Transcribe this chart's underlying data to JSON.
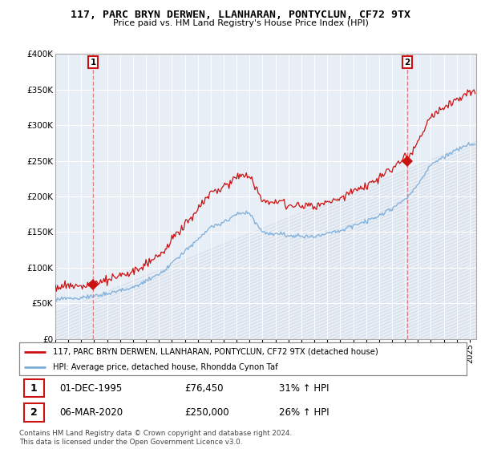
{
  "title": "117, PARC BRYN DERWEN, LLANHARAN, PONTYCLUN, CF72 9TX",
  "subtitle": "Price paid vs. HM Land Registry's House Price Index (HPI)",
  "legend_line1": "117, PARC BRYN DERWEN, LLANHARAN, PONTYCLUN, CF72 9TX (detached house)",
  "legend_line2": "HPI: Average price, detached house, Rhondda Cynon Taf",
  "annotation1_date": "01-DEC-1995",
  "annotation1_price": "£76,450",
  "annotation1_hpi": "31% ↑ HPI",
  "annotation2_date": "06-MAR-2020",
  "annotation2_price": "£250,000",
  "annotation2_hpi": "26% ↑ HPI",
  "footer": "Contains HM Land Registry data © Crown copyright and database right 2024.\nThis data is licensed under the Open Government Licence v3.0.",
  "hpi_color": "#7aaddb",
  "price_color": "#cc1111",
  "vline_color": "#dd6666",
  "bg_color": "#e8eef5",
  "hatch_color": "#d0d8e4",
  "grid_color": "#ffffff",
  "ylim": [
    0,
    400000
  ],
  "yticks": [
    0,
    50000,
    100000,
    150000,
    200000,
    250000,
    300000,
    350000,
    400000
  ],
  "xlim_start": 1993.0,
  "xlim_end": 2025.5,
  "sale1_x": 1995.92,
  "sale1_y": 76450,
  "sale2_x": 2020.17,
  "sale2_y": 250000
}
